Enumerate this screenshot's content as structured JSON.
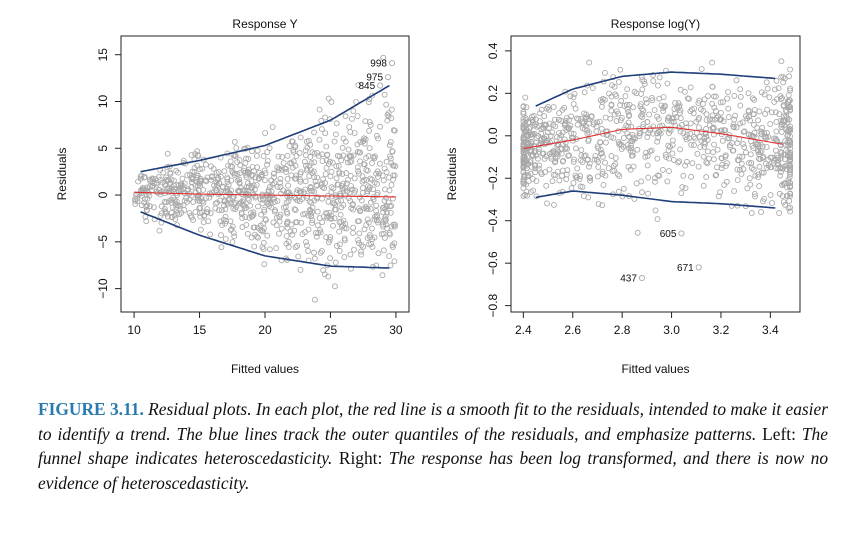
{
  "chart_data": [
    {
      "type": "scatter",
      "title": "Response Y",
      "xlabel": "Fitted values",
      "ylabel": "Residuals",
      "xlim": [
        9,
        31
      ],
      "ylim": [
        -12.5,
        17
      ],
      "xticks": [
        "10",
        "15",
        "20",
        "25",
        "30"
      ],
      "yticks": [
        "−10",
        "−5",
        "0",
        "5",
        "10",
        "15"
      ],
      "grid": false,
      "points": {
        "count": 1000,
        "color": "#a8a8a8",
        "x_range": [
          10,
          30
        ]
      },
      "smooth_fit": {
        "color": "#e03030",
        "x": [
          10,
          15,
          20,
          25,
          30
        ],
        "y": [
          0.3,
          0.1,
          0.0,
          -0.1,
          -0.2
        ]
      },
      "outer_quantiles": {
        "color": "#1f3f7a",
        "upper": {
          "x": [
            10.5,
            15,
            20,
            25,
            29.5
          ],
          "y": [
            2.5,
            3.7,
            5.3,
            8.0,
            11.7
          ]
        },
        "lower": {
          "x": [
            10.5,
            15,
            20,
            25,
            29.5
          ],
          "y": [
            -1.8,
            -4.3,
            -6.5,
            -7.6,
            -7.8
          ]
        }
      },
      "annotations": [
        {
          "label": "998",
          "x": 29.7,
          "y": 14.1
        },
        {
          "label": "975",
          "x": 29.4,
          "y": 12.6
        },
        {
          "label": "845",
          "x": 28.8,
          "y": 11.7
        }
      ]
    },
    {
      "type": "scatter",
      "title": "Response log(Y)",
      "xlabel": "Fitted values",
      "ylabel": "Residuals",
      "xlim": [
        2.35,
        3.52
      ],
      "ylim": [
        -0.83,
        0.47
      ],
      "xticks": [
        "2.4",
        "2.6",
        "2.8",
        "3.0",
        "3.2",
        "3.4"
      ],
      "yticks": [
        "−0.8",
        "−0.6",
        "−0.4",
        "−0.2",
        "0.0",
        "0.2",
        "0.4"
      ],
      "grid": false,
      "points": {
        "count": 1000,
        "color": "#a8a8a8",
        "x_range": [
          2.4,
          3.48
        ]
      },
      "smooth_fit": {
        "color": "#e03030",
        "x": [
          2.4,
          2.6,
          2.8,
          3.0,
          3.2,
          3.45
        ],
        "y": [
          -0.06,
          -0.02,
          0.03,
          0.04,
          0.01,
          -0.04
        ]
      },
      "outer_quantiles": {
        "color": "#1f3f7a",
        "upper": {
          "x": [
            2.45,
            2.6,
            2.8,
            3.0,
            3.2,
            3.42
          ],
          "y": [
            0.14,
            0.22,
            0.28,
            0.3,
            0.29,
            0.27
          ]
        },
        "lower": {
          "x": [
            2.45,
            2.6,
            2.8,
            3.0,
            3.2,
            3.42
          ],
          "y": [
            -0.29,
            -0.26,
            -0.28,
            -0.31,
            -0.32,
            -0.34
          ]
        }
      },
      "annotations": [
        {
          "label": "605",
          "x": 3.04,
          "y": -0.46
        },
        {
          "label": "671",
          "x": 3.11,
          "y": -0.62
        },
        {
          "label": "437",
          "x": 2.88,
          "y": -0.67
        }
      ]
    }
  ],
  "caption": {
    "label": "FIGURE 3.11.",
    "sentence_1": "Residual plots. In each plot, the red line is a smooth fit to the residuals, intended to make it easier to identify a trend. The blue lines track the outer quantiles of the residuals, and emphasize patterns.",
    "left_label": "Left:",
    "left_text": "The funnel shape indicates heteroscedasticity.",
    "right_label": "Right:",
    "right_text": "The response has been log transformed, and there is now no evidence of heteroscedasticity."
  }
}
